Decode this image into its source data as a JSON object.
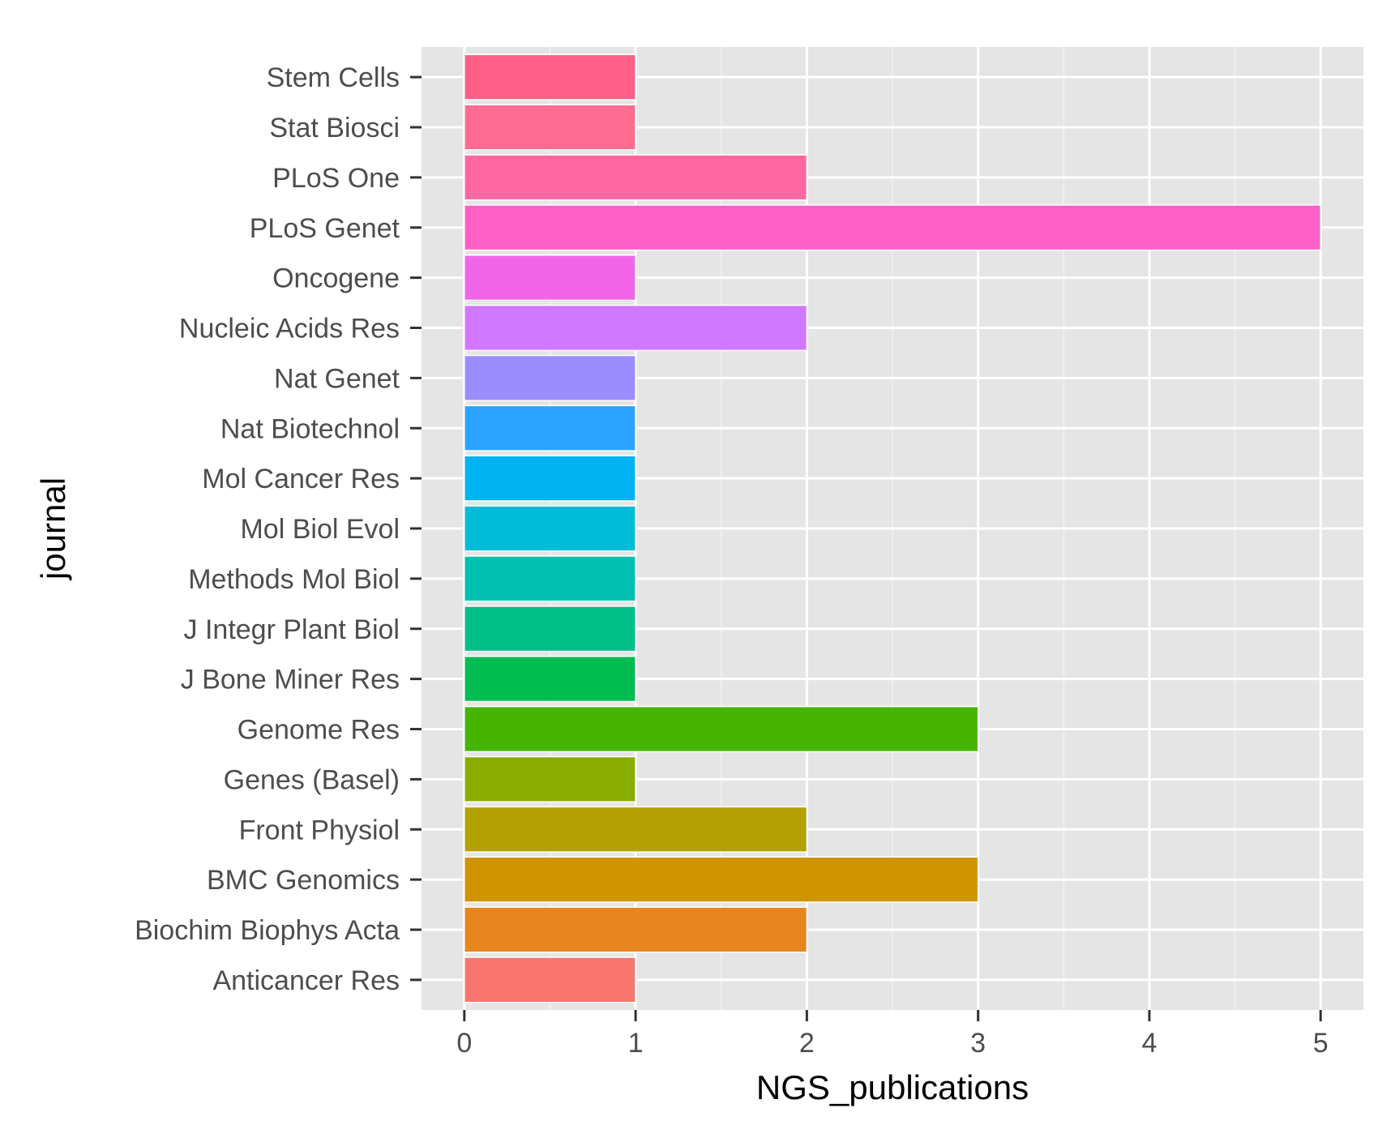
{
  "chart_data": {
    "type": "bar",
    "orientation": "horizontal",
    "title": "",
    "xlabel": "NGS_publications",
    "ylabel": "journal",
    "xlim": [
      -0.25,
      5.25
    ],
    "xticks": [
      0,
      1,
      2,
      3,
      4,
      5
    ],
    "grid": true,
    "legend": "none",
    "categories": [
      "Anticancer Res",
      "Biochim Biophys Acta",
      "BMC Genomics",
      "Front Physiol",
      "Genes (Basel)",
      "Genome Res",
      "J Bone Miner Res",
      "J Integr Plant Biol",
      "Methods Mol Biol",
      "Mol Biol Evol",
      "Mol Cancer Res",
      "Nat Biotechnol",
      "Nat Genet",
      "Nucleic Acids Res",
      "Oncogene",
      "PLoS Genet",
      "PLoS One",
      "Stat Biosci",
      "Stem Cells"
    ],
    "values": [
      1,
      2,
      3,
      2,
      1,
      3,
      1,
      1,
      1,
      1,
      1,
      1,
      1,
      2,
      1,
      5,
      2,
      1,
      1
    ],
    "colors": [
      "#F8766D",
      "#E7851E",
      "#D09400",
      "#B2A100",
      "#89AC00",
      "#45B500",
      "#00BC51",
      "#00C087",
      "#00C0B2",
      "#00BCD6",
      "#00B3F2",
      "#29A3FF",
      "#9C8DFF",
      "#D277FF",
      "#F166E8",
      "#FF61C7",
      "#FF68A1",
      "#FF6C91",
      "#FF5E87"
    ],
    "panel_background": "#E5E5E5",
    "grid_color": "#FFFFFF"
  }
}
